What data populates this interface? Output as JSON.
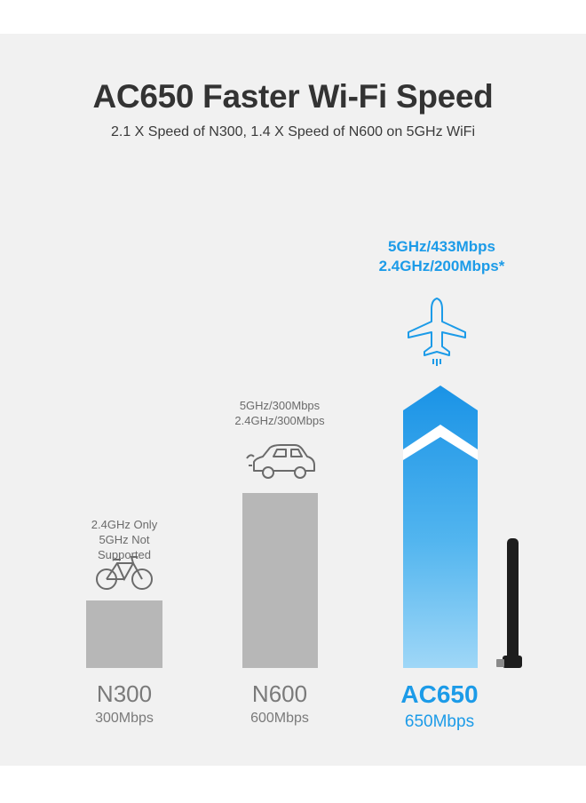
{
  "title": "AC650 Faster Wi-Fi Speed",
  "subtitle": "2.1 X Speed of N300, 1.4 X Speed of N600 on 5GHz WiFi",
  "icons": [
    "bicycle-icon",
    "car-icon",
    "airplane-icon",
    "usb-adapter-icon"
  ],
  "colors": {
    "accent": "#1c9be8",
    "gray_bar": "#b7b7b7",
    "text_gray": "#7a7a7a"
  },
  "chart_data": {
    "type": "bar",
    "categories": [
      "N300",
      "N600",
      "AC650"
    ],
    "values": [
      300,
      600,
      650
    ],
    "value_labels": [
      "300Mbps",
      "600Mbps",
      "650Mbps"
    ],
    "annotations": [
      [
        "2.4GHz Only",
        "5GHz Not Supported"
      ],
      [
        "5GHz/300Mbps",
        "2.4GHz/300Mbps"
      ],
      [
        "5GHz/433Mbps",
        "2.4GHz/200Mbps*"
      ]
    ],
    "title": "AC650 Faster Wi-Fi Speed",
    "xlabel": "",
    "ylabel": "",
    "ylim": [
      0,
      650
    ]
  }
}
